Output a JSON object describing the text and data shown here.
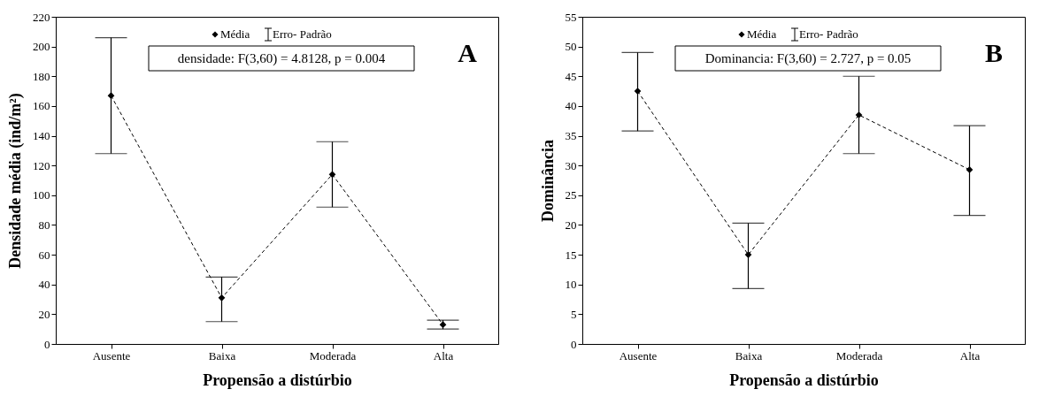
{
  "chart_data": [
    {
      "type": "line",
      "categories": [
        "Ausente",
        "Baixa",
        "Moderada",
        "Alta"
      ],
      "xlabel": "Propensão a distúrbio",
      "ylabel": "Densidade média (ind/m²)",
      "ylim": [
        0,
        220
      ],
      "yticks": [
        0,
        20,
        40,
        60,
        80,
        100,
        120,
        140,
        160,
        180,
        200,
        220
      ],
      "series": [
        {
          "name": "Média",
          "color": "#000000",
          "values": [
            167,
            31,
            114,
            13
          ],
          "errors": [
            [
              128,
              206
            ],
            [
              15,
              45
            ],
            [
              92,
              136
            ],
            [
              10,
              16
            ]
          ]
        }
      ],
      "marker": "diamond",
      "line_style": "dashed",
      "legend": "top",
      "grid": false,
      "annotations": [
        "Erro- Padrão",
        "densidade:   F(3,60) = 4.8128, p = 0.004",
        "A"
      ]
    },
    {
      "type": "line",
      "categories": [
        "Ausente",
        "Baixa",
        "Moderada",
        "Alta"
      ],
      "xlabel": "Propensão a distúrbio",
      "ylabel": "Dominância",
      "ylim": [
        0,
        55
      ],
      "yticks": [
        0,
        5,
        10,
        15,
        20,
        25,
        30,
        35,
        40,
        45,
        50,
        55
      ],
      "series": [
        {
          "name": "Média",
          "color": "#000000",
          "values": [
            42.5,
            15,
            38.5,
            29.3
          ],
          "errors": [
            [
              35.8,
              49
            ],
            [
              9.3,
              20.3
            ],
            [
              32,
              45
            ],
            [
              21.6,
              36.7
            ]
          ]
        }
      ],
      "marker": "diamond",
      "line_style": "dashed",
      "legend": "top",
      "grid": false,
      "annotations": [
        "Erro- Padrão",
        "Dominancia:   F(3,60) = 2.727, p = 0.05",
        "B"
      ]
    }
  ]
}
